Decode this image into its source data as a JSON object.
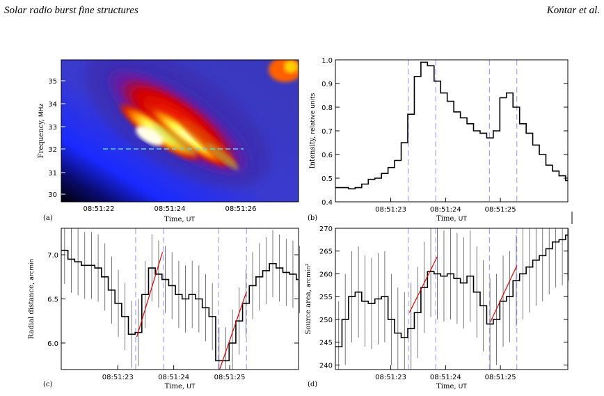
{
  "header": {
    "left": "Solar radio burst fine structures",
    "right": "Kontar et al."
  },
  "colors": {
    "dashed_line": "#8f8ff5",
    "cyan_line": "#55d8e8",
    "fit_line": "#e00000",
    "histogram": "#000000",
    "error_bars": "#555555"
  },
  "chart_data": [
    {
      "panel_label": "(a)",
      "type": "heatmap",
      "colormap": "blue-red-yellow-white",
      "xlabel": "Time",
      "xunit": "UT",
      "ylabel": "Frequency",
      "yunit": "MHz",
      "x_ticks": [
        "08:51:22",
        "08:51:24",
        "08:51:26"
      ],
      "y_ticks": [
        "30",
        "31",
        "32",
        "33",
        "34",
        "35"
      ],
      "ylim": [
        29.6,
        36
      ],
      "cyan_line_frequency": 32,
      "annotation": "intense yellow/white emission stripes drifting from high to low frequency with time"
    },
    {
      "panel_label": "(b)",
      "type": "line",
      "xlabel": "Time",
      "xunit": "UT",
      "ylabel": "Intensity",
      "yunit": "relative units",
      "x_ticks": [
        "08:51:23",
        "08:51:24",
        "08:51:25"
      ],
      "y_ticks": [
        "0.4",
        "0.5",
        "0.6",
        "0.7",
        "0.8",
        "0.9",
        "1.0"
      ],
      "ylim": [
        0.4,
        1.0
      ],
      "xlim_s": [
        21.99,
        26.23
      ],
      "x_seconds": [
        21.99,
        22.11,
        22.23,
        22.35,
        22.47,
        22.59,
        22.71,
        22.83,
        22.95,
        23.07,
        23.19,
        23.31,
        23.43,
        23.55,
        23.67,
        23.79,
        23.91,
        24.03,
        24.15,
        24.27,
        24.39,
        24.51,
        24.63,
        24.75,
        24.87,
        24.99,
        25.11,
        25.23,
        25.35,
        25.47,
        25.59,
        25.71,
        25.83,
        25.95,
        26.07,
        26.19
      ],
      "y_values": [
        0.46,
        0.46,
        0.455,
        0.46,
        0.475,
        0.495,
        0.5,
        0.52,
        0.545,
        0.575,
        0.65,
        0.77,
        0.93,
        0.99,
        0.975,
        0.91,
        0.86,
        0.825,
        0.78,
        0.755,
        0.73,
        0.7,
        0.69,
        0.67,
        0.7,
        0.84,
        0.86,
        0.8,
        0.73,
        0.69,
        0.64,
        0.6,
        0.555,
        0.53,
        0.51,
        0.49
      ],
      "dashed_lines_s": [
        23.32,
        23.82,
        24.8,
        25.3
      ]
    },
    {
      "panel_label": "(c)",
      "type": "line",
      "xlabel": "Time",
      "xunit": "UT",
      "ylabel": "Radial distance",
      "yunit": "arcmin",
      "x_ticks": [
        "08:51:23",
        "08:51:24",
        "08:51:25"
      ],
      "y_ticks": [
        "6.0",
        "6.5",
        "7.0"
      ],
      "ylim": [
        5.7,
        7.3
      ],
      "xlim_s": [
        21.99,
        26.23
      ],
      "x_seconds": [
        21.99,
        22.11,
        22.23,
        22.35,
        22.47,
        22.59,
        22.71,
        22.83,
        22.95,
        23.07,
        23.19,
        23.31,
        23.43,
        23.55,
        23.67,
        23.79,
        23.91,
        24.03,
        24.15,
        24.27,
        24.39,
        24.51,
        24.63,
        24.75,
        24.87,
        24.99,
        25.11,
        25.23,
        25.35,
        25.47,
        25.59,
        25.71,
        25.83,
        25.95,
        26.07,
        26.19
      ],
      "y_values": [
        7.05,
        6.95,
        6.92,
        6.88,
        6.88,
        6.85,
        6.75,
        6.6,
        6.45,
        6.3,
        6.1,
        6.12,
        6.55,
        6.85,
        6.78,
        6.72,
        6.65,
        6.55,
        6.5,
        6.55,
        6.5,
        6.4,
        6.3,
        5.8,
        5.8,
        6.0,
        6.25,
        6.45,
        6.65,
        6.75,
        6.82,
        6.9,
        6.85,
        6.8,
        6.78,
        6.72
      ],
      "error_half_width": 0.38,
      "dashed_lines_s": [
        23.32,
        23.82,
        24.8,
        25.3
      ],
      "fit_segments": [
        {
          "x": [
            23.34,
            23.8
          ],
          "y": [
            6.07,
            7.03
          ]
        },
        {
          "x": [
            24.82,
            25.3
          ],
          "y": [
            5.7,
            6.58
          ]
        }
      ]
    },
    {
      "panel_label": "(d)",
      "type": "line",
      "xlabel": "Time",
      "xunit": "UT",
      "ylabel": "Source area",
      "yunit": "arcmin²",
      "x_ticks": [
        "08:51:23",
        "08:51:24",
        "08:51:25"
      ],
      "y_ticks": [
        "240",
        "245",
        "250",
        "255",
        "260",
        "265",
        "270"
      ],
      "ylim": [
        239,
        270
      ],
      "xlim_s": [
        21.99,
        26.23
      ],
      "x_seconds": [
        21.99,
        22.11,
        22.23,
        22.35,
        22.47,
        22.59,
        22.71,
        22.83,
        22.95,
        23.07,
        23.19,
        23.31,
        23.43,
        23.55,
        23.67,
        23.79,
        23.91,
        24.03,
        24.15,
        24.27,
        24.39,
        24.51,
        24.63,
        24.75,
        24.87,
        24.99,
        25.11,
        25.23,
        25.35,
        25.47,
        25.59,
        25.71,
        25.83,
        25.95,
        26.07,
        26.19
      ],
      "y_values": [
        244,
        250,
        255,
        256,
        254,
        253.5,
        254.5,
        255,
        250,
        247,
        246,
        248,
        251.5,
        257,
        260.5,
        260,
        259.5,
        260,
        259,
        258,
        259.5,
        256,
        253,
        249,
        250,
        254,
        255,
        258.5,
        260,
        261.5,
        263,
        264,
        265.5,
        267,
        267.5,
        268.5
      ],
      "error_half_width": 10,
      "dashed_lines_s": [
        23.32,
        23.82,
        24.8,
        25.3
      ],
      "fit_segments": [
        {
          "x": [
            23.34,
            23.85
          ],
          "y": [
            251.5,
            263.8
          ]
        },
        {
          "x": [
            24.82,
            25.3
          ],
          "y": [
            249.5,
            261.8
          ]
        }
      ]
    }
  ]
}
